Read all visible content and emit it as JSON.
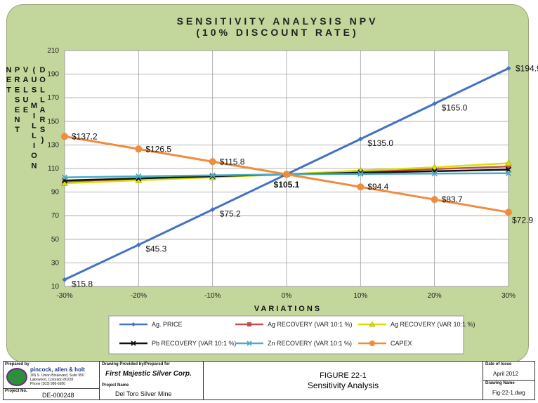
{
  "chart_data": {
    "type": "line",
    "title": "SENSITIVITY ANALYSIS NPV",
    "subtitle": "(10% DISCOUNT RATE)",
    "xlabel": "VARIATIONS",
    "ylabel": "NET PRESENT VALUE (US MILLION DOLLARS)",
    "ylabel_columns": [
      "NET",
      "PRESENT",
      "VALUE",
      "(US MILLION",
      "DOLLARS)"
    ],
    "categories": [
      "-30%",
      "-20%",
      "-10%",
      "0%",
      "10%",
      "20%",
      "30%"
    ],
    "ylim": [
      10,
      210
    ],
    "yticks": [
      10,
      30,
      50,
      70,
      90,
      110,
      130,
      150,
      170,
      190,
      210
    ],
    "grid": true,
    "legend_position": "bottom",
    "series": [
      {
        "name": "Ag. PRICE",
        "color": "#4472c4",
        "marker": "diamond",
        "values": [
          15.8,
          45.3,
          75.2,
          105.1,
          135.0,
          165.0,
          194.9
        ],
        "labels": [
          "$15.8",
          "$45.3",
          "$75.2",
          "",
          "$135.0",
          "$165.0",
          "$194.9"
        ]
      },
      {
        "name": "Ag RECOVERY (VAR 10:1 %)",
        "color": "#c0504d",
        "marker": "square",
        "values": [
          98.5,
          100.7,
          102.9,
          105.1,
          107.3,
          109.5,
          111.7
        ]
      },
      {
        "name": "Ag RECOVERY (VAR 10:1 %)",
        "color": "#d8e000",
        "marker": "triangle",
        "values": [
          97.5,
          100.0,
          102.5,
          105.1,
          108.3,
          111.0,
          114.5
        ]
      },
      {
        "name": "Pb RECOVERY (VAR 10:1 %)",
        "color": "#111111",
        "marker": "x",
        "values": [
          99.8,
          101.6,
          103.4,
          105.1,
          106.4,
          107.7,
          109.0
        ]
      },
      {
        "name": "Zn RECOVERY (VAR 10:1 %)",
        "color": "#4bacc6",
        "marker": "x",
        "values": [
          102.5,
          103.4,
          104.2,
          105.1,
          105.4,
          105.7,
          106.0
        ]
      },
      {
        "name": "CAPEX",
        "color": "#f08c3c",
        "marker": "circle",
        "values": [
          137.2,
          126.5,
          115.8,
          105.1,
          94.4,
          83.7,
          72.9
        ],
        "labels": [
          "$137.2",
          "$126.5",
          "$115.8",
          "$105.1",
          "$94.4",
          "$83.7",
          "$72.9"
        ]
      }
    ]
  },
  "title_block": {
    "prepared_by_label": "Prepared by",
    "company": "pincock, allen & holt",
    "address1": "165 S. Union Boulevard, Suite 950",
    "address2": "Lakewood, Colorado 80228",
    "phone": "Phone (303) 986-6950",
    "drawing_provided_label": "Drawing Provided by/Prepared for",
    "client": "First Majestic Silver Corp.",
    "project_name_label": "Project Name",
    "project_name": "Del Toro Silver Mine",
    "project_no_label": "Project No.",
    "project_no": "DE-000248",
    "figure_number": "FIGURE 22-1",
    "figure_title": "Sensitivity Analysis",
    "date_label": "Date of Issue",
    "date": "April 2012",
    "drawing_name_label": "Drawing Name",
    "drawing_name": "Fig-22-1.dwg"
  },
  "colors": {
    "panel": "#c3d69b",
    "plot": "#ffffff",
    "grid": "#9e9e9e"
  }
}
